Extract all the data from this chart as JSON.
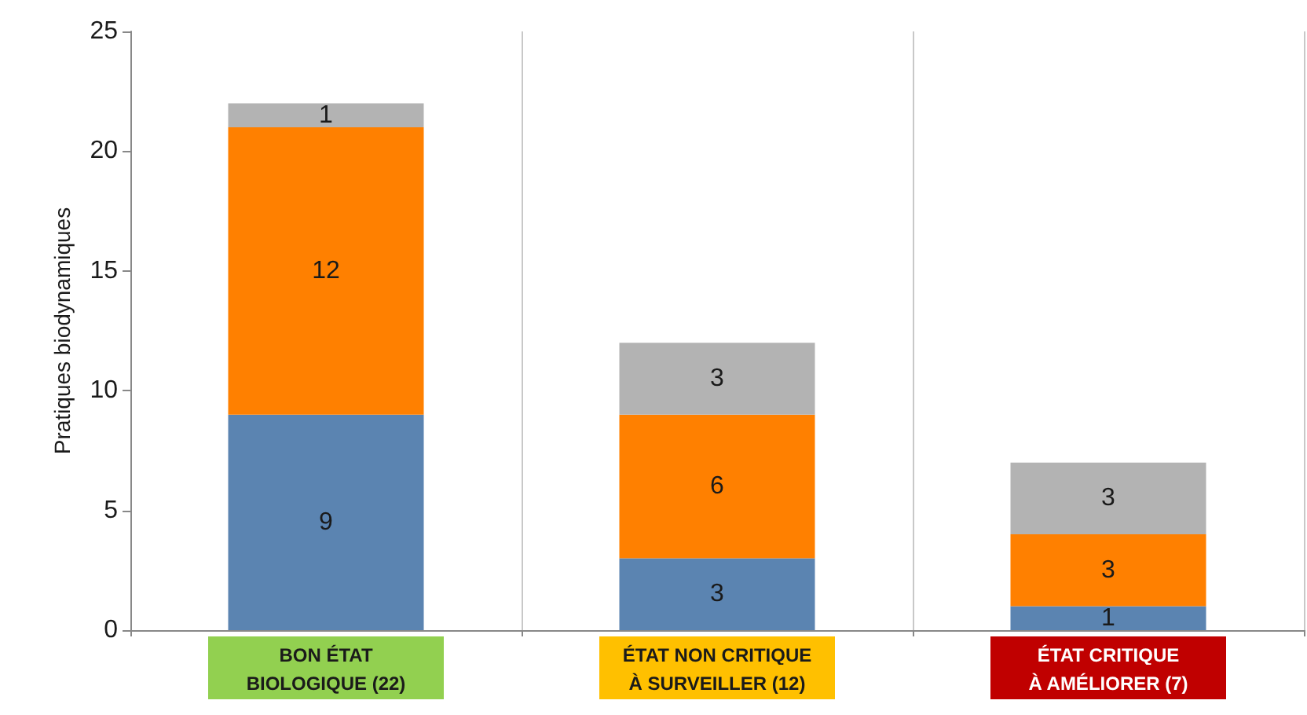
{
  "chart_data": {
    "type": "bar",
    "stacked": true,
    "ylabel": "Pratiques biodynamiques",
    "categories": [
      "BON ÉTAT\nBIOLOGIQUE (22)",
      "ÉTAT NON CRITIQUE\nÀ SURVEILLER (12)",
      "ÉTAT CRITIQUE\nÀ AMÉLIORER (7)"
    ],
    "series": [
      {
        "color": "#5b84b1",
        "values": [
          9,
          3,
          1
        ]
      },
      {
        "color": "#ff8000",
        "values": [
          12,
          6,
          3
        ]
      },
      {
        "color": "#b3b3b3",
        "values": [
          1,
          3,
          3
        ]
      }
    ],
    "ylim": [
      0,
      25
    ],
    "yticks": [
      0,
      5,
      10,
      15,
      20,
      25
    ],
    "grid": "x",
    "data_labels": true
  }
}
